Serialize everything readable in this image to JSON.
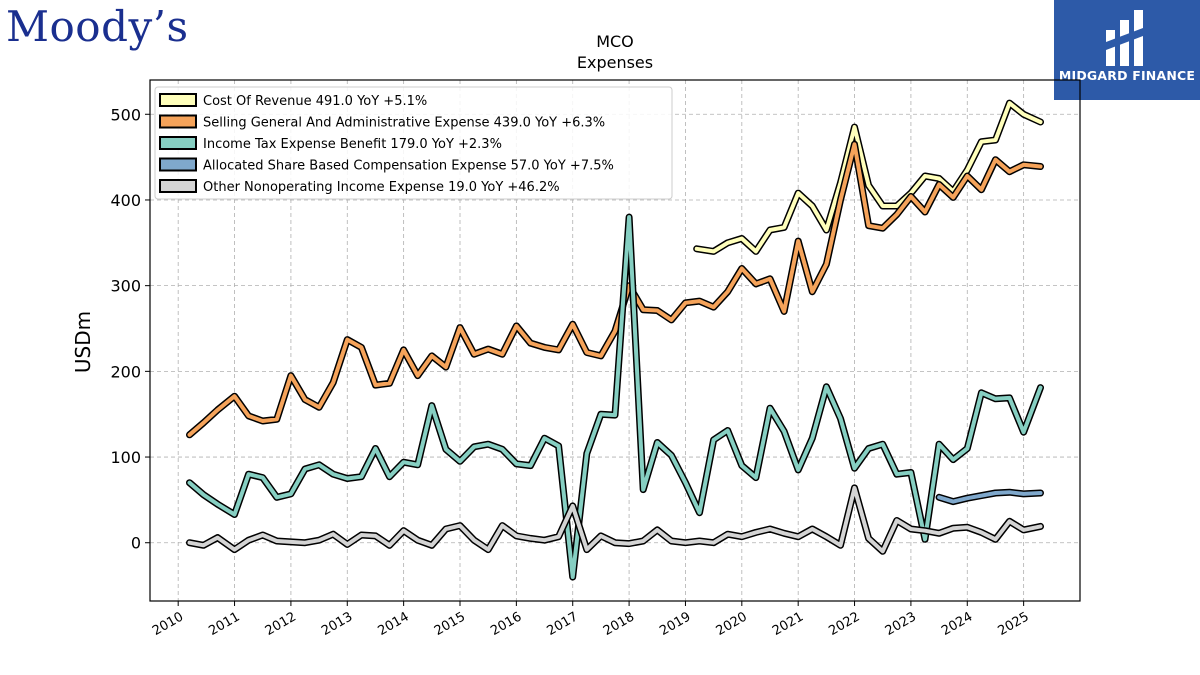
{
  "branding": {
    "left_logo": "Moody’s",
    "right_logo": "MIDGARD FINANCE"
  },
  "chart_data": {
    "type": "line",
    "title": "MCO",
    "subtitle": "Expenses",
    "xlabel": "",
    "ylabel": "USDm",
    "xlim": [
      2009.5,
      2026.0
    ],
    "ylim": [
      -68,
      540
    ],
    "x_ticks": [
      "2010",
      "2011",
      "2012",
      "2013",
      "2014",
      "2015",
      "2016",
      "2017",
      "2018",
      "2019",
      "2020",
      "2021",
      "2022",
      "2023",
      "2024",
      "2025"
    ],
    "y_ticks": [
      "0",
      "100",
      "200",
      "300",
      "400",
      "500"
    ],
    "grid": true,
    "legend_position": "top-left",
    "series": [
      {
        "name": "Cost Of Revenue  491.0 YoY +5.1%",
        "color": "#ffffbb",
        "x": [
          2019.2,
          2019.5,
          2019.75,
          2020.0,
          2020.25,
          2020.5,
          2020.75,
          2021.0,
          2021.25,
          2021.5,
          2021.75,
          2022.0,
          2022.25,
          2022.5,
          2022.75,
          2023.0,
          2023.25,
          2023.5,
          2023.75,
          2024.0,
          2024.25,
          2024.5,
          2024.75,
          2025.0,
          2025.3
        ],
        "y": [
          343,
          340,
          350,
          355,
          340,
          365,
          368,
          408,
          393,
          365,
          420,
          485,
          417,
          393,
          393,
          408,
          428,
          425,
          410,
          435,
          468,
          470,
          513,
          500,
          491
        ]
      },
      {
        "name": "Selling General And Administrative Expense  439.0 YoY +6.3%",
        "color": "#f5a35a",
        "x": [
          2010.2,
          2010.45,
          2010.7,
          2011.0,
          2011.25,
          2011.5,
          2011.75,
          2012.0,
          2012.25,
          2012.5,
          2012.75,
          2013.0,
          2013.25,
          2013.5,
          2013.75,
          2014.0,
          2014.25,
          2014.5,
          2014.75,
          2015.0,
          2015.25,
          2015.5,
          2015.75,
          2016.0,
          2016.25,
          2016.5,
          2016.75,
          2017.0,
          2017.25,
          2017.5,
          2017.75,
          2018.0,
          2018.25,
          2018.5,
          2018.75,
          2019.0,
          2019.25,
          2019.5,
          2019.75,
          2020.0,
          2020.25,
          2020.5,
          2020.75,
          2021.0,
          2021.25,
          2021.5,
          2021.75,
          2022.0,
          2022.25,
          2022.5,
          2022.75,
          2023.0,
          2023.25,
          2023.5,
          2023.75,
          2024.0,
          2024.25,
          2024.5,
          2024.75,
          2025.0,
          2025.3
        ],
        "y": [
          126,
          140,
          155,
          171,
          148,
          142,
          144,
          195,
          167,
          158,
          187,
          237,
          228,
          184,
          186,
          225,
          195,
          218,
          205,
          251,
          220,
          226,
          220,
          253,
          233,
          228,
          225,
          255,
          222,
          218,
          247,
          300,
          272,
          271,
          260,
          280,
          282,
          275,
          293,
          320,
          302,
          308,
          270,
          352,
          293,
          325,
          400,
          465,
          370,
          367,
          383,
          404,
          386,
          418,
          403,
          428,
          412,
          447,
          433,
          441,
          439
        ]
      },
      {
        "name": "Income Tax Expense Benefit  179.0 YoY +2.3%",
        "color": "#86cfc2",
        "x": [
          2010.2,
          2010.45,
          2010.7,
          2011.0,
          2011.25,
          2011.5,
          2011.75,
          2012.0,
          2012.25,
          2012.5,
          2012.75,
          2013.0,
          2013.25,
          2013.5,
          2013.75,
          2014.0,
          2014.25,
          2014.5,
          2014.75,
          2015.0,
          2015.25,
          2015.5,
          2015.75,
          2016.0,
          2016.25,
          2016.5,
          2016.75,
          2017.0,
          2017.25,
          2017.5,
          2017.75,
          2018.0,
          2018.25,
          2018.5,
          2018.75,
          2019.0,
          2019.25,
          2019.5,
          2019.75,
          2020.0,
          2020.25,
          2020.5,
          2020.75,
          2021.0,
          2021.25,
          2021.5,
          2021.75,
          2022.0,
          2022.25,
          2022.5,
          2022.75,
          2023.0,
          2023.25,
          2023.5,
          2023.75,
          2024.0,
          2024.25,
          2024.5,
          2024.75,
          2025.0,
          2025.3
        ],
        "y": [
          70,
          56,
          45,
          33,
          80,
          76,
          53,
          57,
          86,
          91,
          80,
          75,
          77,
          110,
          77,
          94,
          91,
          160,
          109,
          95,
          112,
          115,
          109,
          92,
          90,
          122,
          113,
          -40,
          104,
          150,
          149,
          380,
          62,
          117,
          102,
          70,
          35,
          120,
          131,
          90,
          76,
          157,
          130,
          85,
          122,
          182,
          145,
          87,
          110,
          115,
          80,
          82,
          4,
          115,
          97,
          110,
          175,
          168,
          169,
          129,
          181
        ]
      },
      {
        "name": "Allocated Share Based Compensation Expense  57.0 YoY +7.5%",
        "color": "#7fa8cc",
        "x": [
          2023.5,
          2023.75,
          2024.0,
          2024.25,
          2024.5,
          2024.75,
          2025.0,
          2025.3
        ],
        "y": [
          53,
          48,
          52,
          55,
          58,
          59,
          57,
          58
        ]
      },
      {
        "name": "Other Nonoperating Income Expense  19.0 YoY +46.2%",
        "color": "#d4d4d4",
        "x": [
          2010.2,
          2010.45,
          2010.7,
          2011.0,
          2011.25,
          2011.5,
          2011.75,
          2012.0,
          2012.25,
          2012.5,
          2012.75,
          2013.0,
          2013.25,
          2013.5,
          2013.75,
          2014.0,
          2014.25,
          2014.5,
          2014.75,
          2015.0,
          2015.25,
          2015.5,
          2015.75,
          2016.0,
          2016.25,
          2016.5,
          2016.75,
          2017.0,
          2017.25,
          2017.5,
          2017.75,
          2018.0,
          2018.25,
          2018.5,
          2018.75,
          2019.0,
          2019.25,
          2019.5,
          2019.75,
          2020.0,
          2020.25,
          2020.5,
          2020.75,
          2021.0,
          2021.25,
          2021.5,
          2021.75,
          2022.0,
          2022.25,
          2022.5,
          2022.75,
          2023.0,
          2023.25,
          2023.5,
          2023.75,
          2024.0,
          2024.25,
          2024.5,
          2024.75,
          2025.0,
          2025.3
        ],
        "y": [
          0,
          -3,
          6,
          -8,
          3,
          9,
          2,
          1,
          0,
          3,
          10,
          -2,
          9,
          8,
          -3,
          14,
          3,
          -3,
          16,
          20,
          3,
          -8,
          20,
          8,
          5,
          3,
          7,
          43,
          -8,
          8,
          0,
          -1,
          2,
          15,
          2,
          0,
          2,
          0,
          10,
          7,
          12,
          16,
          11,
          7,
          16,
          7,
          -3,
          64,
          5,
          -10,
          26,
          16,
          14,
          11,
          17,
          18,
          12,
          4,
          25,
          15,
          19
        ]
      }
    ]
  }
}
